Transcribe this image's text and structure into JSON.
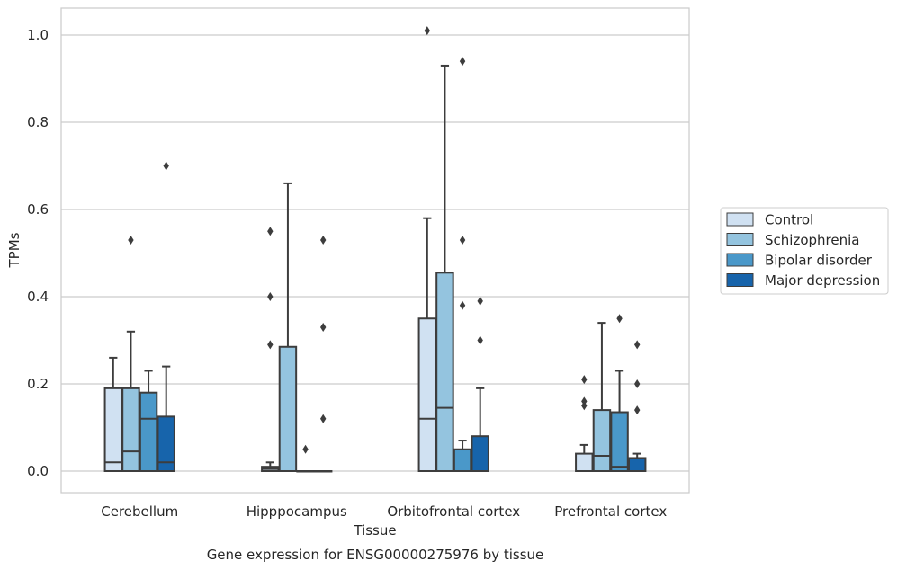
{
  "chart_data": {
    "type": "box",
    "title": "",
    "caption": "Gene expression for ENSG00000275976 by tissue",
    "xlabel": "Tissue",
    "ylabel": "TPMs",
    "ylim": [
      -0.05,
      1.06
    ],
    "yticks": [
      0.0,
      0.2,
      0.4,
      0.6,
      0.8,
      1.0
    ],
    "ytick_labels": [
      "0.0",
      "0.2",
      "0.4",
      "0.6",
      "0.8",
      "1.0"
    ],
    "categories": [
      "Cerebellum",
      "Hipppocampus",
      "Orbitofrontal cortex",
      "Prefrontal cortex"
    ],
    "grid": "horizontal",
    "legend_position": "right",
    "series": [
      {
        "name": "Control",
        "color": "#d0e1f2",
        "boxes": [
          {
            "whislo": 0.0,
            "q1": 0.0,
            "med": 0.02,
            "q3": 0.19,
            "whishi": 0.26,
            "fliers": []
          },
          {
            "whislo": 0.0,
            "q1": 0.0,
            "med": 0.005,
            "q3": 0.01,
            "whishi": 0.02,
            "fliers": [
              0.29,
              0.4,
              0.55
            ]
          },
          {
            "whislo": 0.0,
            "q1": 0.0,
            "med": 0.12,
            "q3": 0.35,
            "whishi": 0.58,
            "fliers": [
              1.01
            ]
          },
          {
            "whislo": 0.0,
            "q1": 0.0,
            "med": 0.0,
            "q3": 0.04,
            "whishi": 0.06,
            "fliers": [
              0.15,
              0.16,
              0.21
            ]
          }
        ]
      },
      {
        "name": "Schizophrenia",
        "color": "#94c4df",
        "boxes": [
          {
            "whislo": 0.0,
            "q1": 0.0,
            "med": 0.045,
            "q3": 0.19,
            "whishi": 0.32,
            "fliers": [
              0.53
            ]
          },
          {
            "whislo": 0.0,
            "q1": 0.0,
            "med": 0.0,
            "q3": 0.285,
            "whishi": 0.66,
            "fliers": []
          },
          {
            "whislo": 0.0,
            "q1": 0.0,
            "med": 0.145,
            "q3": 0.455,
            "whishi": 0.93,
            "fliers": []
          },
          {
            "whislo": 0.0,
            "q1": 0.0,
            "med": 0.035,
            "q3": 0.14,
            "whishi": 0.34,
            "fliers": []
          }
        ]
      },
      {
        "name": "Bipolar disorder",
        "color": "#4a98c9",
        "boxes": [
          {
            "whislo": 0.0,
            "q1": 0.0,
            "med": 0.12,
            "q3": 0.18,
            "whishi": 0.23,
            "fliers": []
          },
          {
            "whislo": 0.0,
            "q1": 0.0,
            "med": 0.0,
            "q3": 0.0,
            "whishi": 0.0,
            "fliers": [
              0.05
            ]
          },
          {
            "whislo": 0.0,
            "q1": 0.0,
            "med": 0.0,
            "q3": 0.05,
            "whishi": 0.07,
            "fliers": [
              0.38,
              0.53,
              0.94
            ]
          },
          {
            "whislo": 0.0,
            "q1": 0.0,
            "med": 0.01,
            "q3": 0.135,
            "whishi": 0.23,
            "fliers": [
              0.35
            ]
          }
        ]
      },
      {
        "name": "Major depression",
        "color": "#1764ab",
        "boxes": [
          {
            "whislo": 0.0,
            "q1": 0.0,
            "med": 0.02,
            "q3": 0.125,
            "whishi": 0.24,
            "fliers": [
              0.7
            ]
          },
          {
            "whislo": 0.0,
            "q1": 0.0,
            "med": 0.0,
            "q3": 0.0,
            "whishi": 0.0,
            "fliers": [
              0.12,
              0.33,
              0.53
            ]
          },
          {
            "whislo": 0.0,
            "q1": 0.0,
            "med": 0.0,
            "q3": 0.08,
            "whishi": 0.19,
            "fliers": [
              0.3,
              0.39
            ]
          },
          {
            "whislo": 0.0,
            "q1": 0.0,
            "med": 0.0,
            "q3": 0.03,
            "whishi": 0.04,
            "fliers": [
              0.14,
              0.2,
              0.29
            ]
          }
        ]
      }
    ]
  }
}
